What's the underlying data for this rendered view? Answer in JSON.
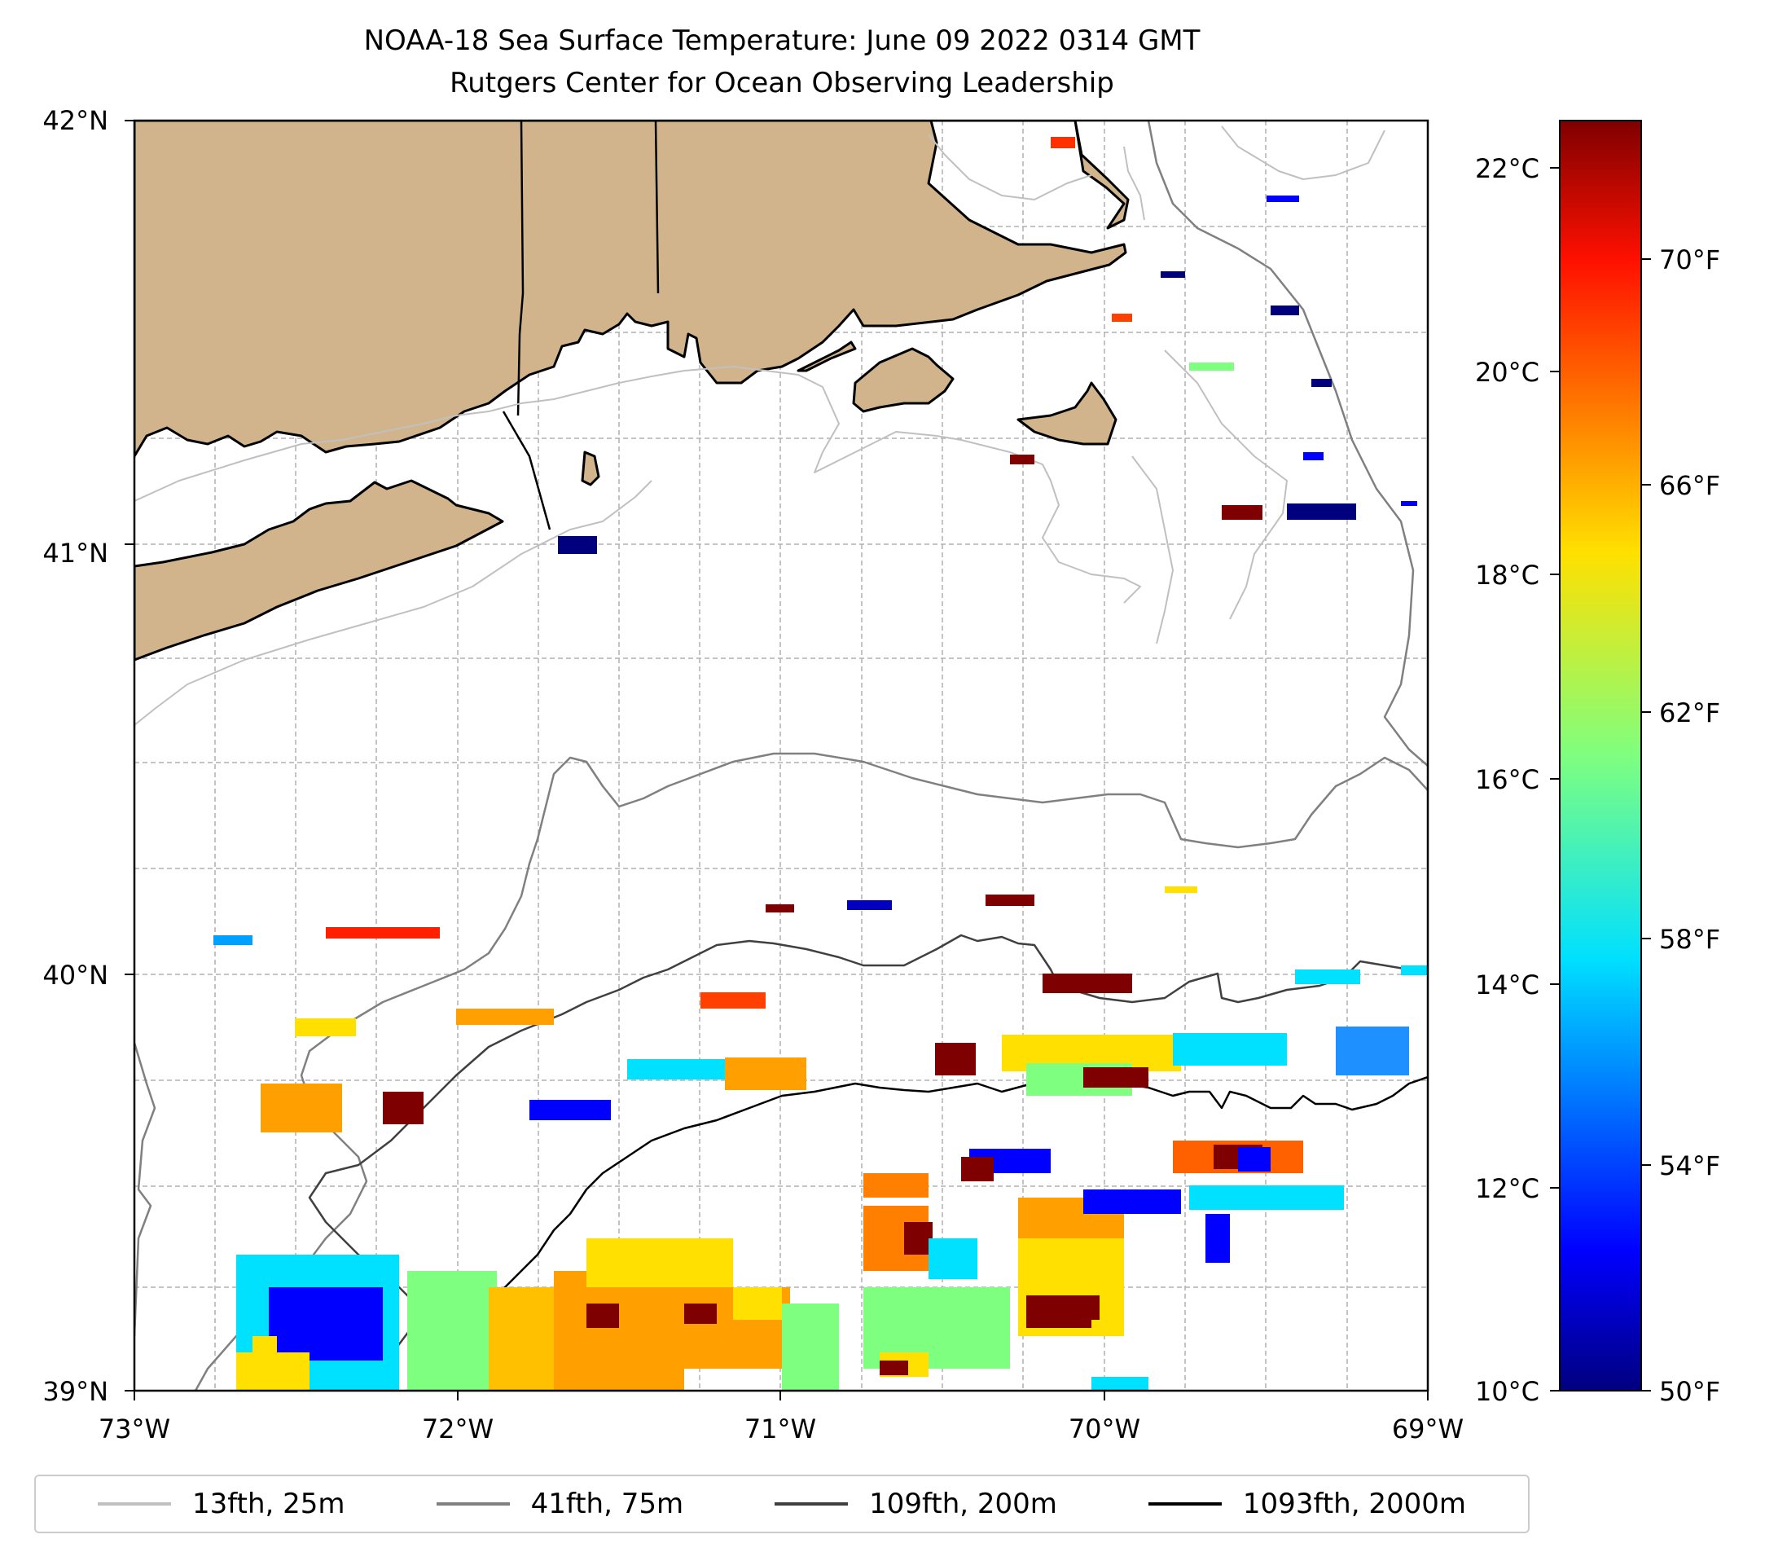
{
  "title": "NOAA-18 Sea Surface Temperature: June 09 2022 0314 GMT",
  "subtitle": "Rutgers Center for Ocean Observing Leadership",
  "map": {
    "lon_range": [
      -73,
      -69
    ],
    "lat_range": [
      39,
      42
    ],
    "lon_ticks": [
      "73°W",
      "72°W",
      "71°W",
      "70°W",
      "69°W"
    ],
    "lat_ticks": [
      "42°N",
      "41°N",
      "40°N",
      "39°N"
    ],
    "gridlines": true,
    "land_color": "#d2b48c",
    "coast_color": "#000000"
  },
  "colorbar": {
    "celsius_range": [
      10,
      22.5
    ],
    "celsius_ticks": [
      "10°C",
      "12°C",
      "14°C",
      "16°C",
      "18°C",
      "20°C",
      "22°C"
    ],
    "fahrenheit_ticks": [
      "50°F",
      "54°F",
      "58°F",
      "62°F",
      "66°F",
      "70°F"
    ],
    "colormap": "jet"
  },
  "legend": [
    {
      "label": "13fth, 25m",
      "color": "#c0c0c0"
    },
    {
      "label": "41fth, 75m",
      "color": "#808080"
    },
    {
      "label": "109fth, 200m",
      "color": "#404040"
    },
    {
      "label": "1093fth, 2000m",
      "color": "#000000"
    }
  ]
}
